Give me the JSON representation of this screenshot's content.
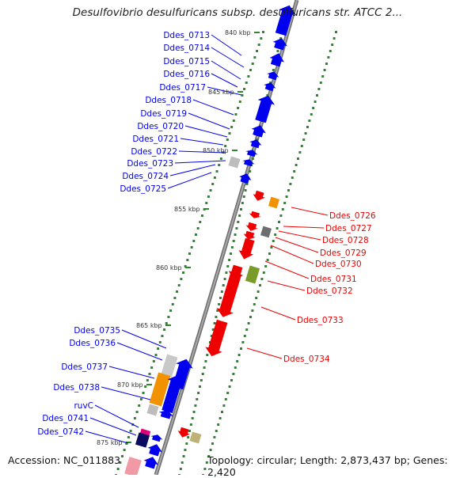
{
  "map_title": "Desulfovibrio desulfuricans subsp. desulfuricans str. ATCC 2...",
  "footer": {
    "accession": "Accession: NC_011883",
    "summary": "Topology: circular; Length: 2,873,437 bp; Genes: 2,420"
  },
  "scale_labels": [
    "840 kbp",
    "845 kbp",
    "850 kbp",
    "855 kbp",
    "860 kbp",
    "865 kbp",
    "870 kbp",
    "875 kbp"
  ],
  "colors": {
    "forward_gene": "#0000ee",
    "reverse_gene": "#ee0000",
    "tick": "#2a8a2a",
    "backbone": "#888888"
  },
  "left_labels": [
    "Ddes_0713",
    "Ddes_0714",
    "Ddes_0715",
    "Ddes_0716",
    "Ddes_0717",
    "Ddes_0718",
    "Ddes_0719",
    "Ddes_0720",
    "Ddes_0721",
    "Ddes_0722",
    "Ddes_0723",
    "Ddes_0724",
    "Ddes_0725",
    "Ddes_0735",
    "Ddes_0736",
    "Ddes_0737",
    "Ddes_0738",
    "ruvC",
    "Ddes_0741",
    "Ddes_0742"
  ],
  "right_labels": [
    "Ddes_0726",
    "Ddes_0727",
    "Ddes_0728",
    "Ddes_0729",
    "Ddes_0730",
    "Ddes_0731",
    "Ddes_0732",
    "Ddes_0733",
    "Ddes_0734"
  ]
}
